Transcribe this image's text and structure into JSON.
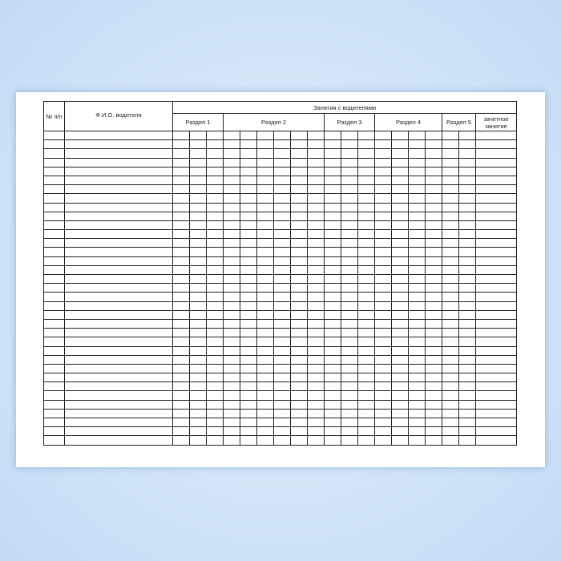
{
  "table": {
    "col_number": "№ п/п",
    "col_name": "Ф.И.О. водителя",
    "group_title": "Занятия с водителями",
    "sections": [
      {
        "label": "Раздел 1",
        "subcolumns": 3
      },
      {
        "label": "Раздел 2",
        "subcolumns": 6
      },
      {
        "label": "Раздел 3",
        "subcolumns": 3
      },
      {
        "label": "Раздел 4",
        "subcolumns": 4
      },
      {
        "label": "Раздел 5",
        "subcolumns": 2
      }
    ],
    "final_column": "зачетное занятие",
    "empty_rows": 35
  }
}
